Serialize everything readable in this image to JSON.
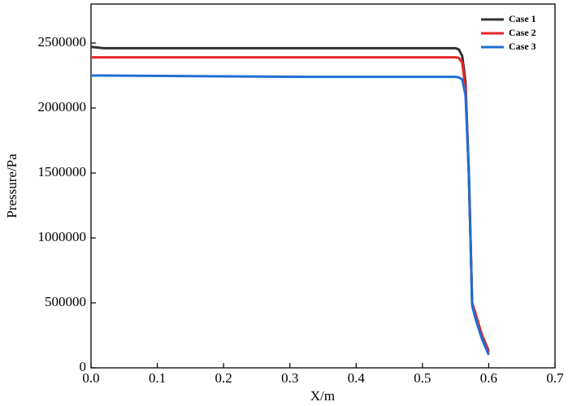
{
  "chart_data": {
    "type": "line",
    "x_label": "X/m",
    "y_label": "Pressure/Pa",
    "x": [
      0,
      0.02,
      0.32,
      0.55,
      0.555,
      0.56,
      0.565,
      0.57,
      0.575,
      0.58,
      0.59,
      0.6
    ],
    "series": [
      {
        "name": "Case 1",
        "color": "#333333",
        "values": [
          2470000,
          2460000,
          2460000,
          2460000,
          2450000,
          2400000,
          2200000,
          1500000,
          500000,
          400000,
          250000,
          130000
        ]
      },
      {
        "name": "Case 2",
        "color": "#e8262a",
        "values": [
          2390000,
          2390000,
          2390000,
          2390000,
          2385000,
          2350000,
          2150000,
          1500000,
          500000,
          420000,
          250000,
          120000
        ]
      },
      {
        "name": "Case 3",
        "color": "#1f6fd1",
        "values": [
          2250000,
          2250000,
          2240000,
          2240000,
          2235000,
          2220000,
          2100000,
          1500000,
          480000,
          380000,
          220000,
          100000
        ]
      }
    ],
    "xlim": [
      0,
      0.7
    ],
    "xticks": [
      {
        "value": 0,
        "label": "0.0"
      },
      0.1,
      0.2,
      0.3,
      0.4,
      0.5,
      0.6,
      0.7
    ],
    "ylim": [
      0,
      2800000
    ],
    "yticks": [
      0,
      500000,
      1000000,
      1500000,
      2000000,
      2500000
    ],
    "legend": "upper right",
    "grid": false
  }
}
